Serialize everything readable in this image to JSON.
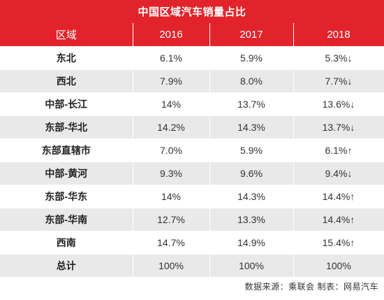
{
  "title": "中国区域汽车销量占比",
  "header": {
    "region": "区域",
    "y2016": "2016",
    "y2017": "2017",
    "y2018": "2018"
  },
  "rows": [
    {
      "region": "东北",
      "y2016": "6.1%",
      "y2017": "5.9%",
      "y2018": "5.3%↓"
    },
    {
      "region": "西北",
      "y2016": "7.9%",
      "y2017": "8.0%",
      "y2018": "7.7%↓"
    },
    {
      "region": "中部-长江",
      "y2016": "14%",
      "y2017": "13.7%",
      "y2018": "13.6%↓"
    },
    {
      "region": "东部-华北",
      "y2016": "14.2%",
      "y2017": "14.3%",
      "y2018": "13.7%↓"
    },
    {
      "region": "东部直辖市",
      "y2016": "7.0%",
      "y2017": "5.9%",
      "y2018": "6.1%↑"
    },
    {
      "region": "中部-黄河",
      "y2016": "9.3%",
      "y2017": "9.6%",
      "y2018": "9.4%↓"
    },
    {
      "region": "东部-华东",
      "y2016": "14%",
      "y2017": "14.3%",
      "y2018": "14.4%↑"
    },
    {
      "region": "东部-华南",
      "y2016": "12.7%",
      "y2017": "13.3%",
      "y2018": "14.4%↑"
    },
    {
      "region": "西南",
      "y2016": "14.7%",
      "y2017": "14.9%",
      "y2018": "15.4%↑"
    },
    {
      "region": "总计",
      "y2016": "100%",
      "y2017": "100%",
      "y2018": "100%"
    }
  ],
  "footer": "数据来源：乘联会 制表：网易汽车",
  "colors": {
    "header_red": "#e2232b",
    "stripe_gray": "#e9e9e9"
  }
}
